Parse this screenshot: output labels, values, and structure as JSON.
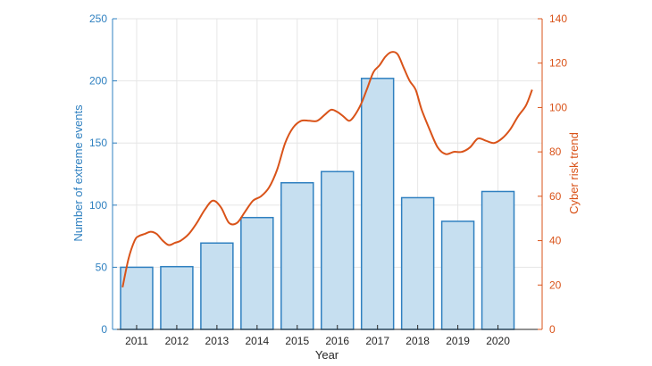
{
  "chart_data": {
    "type": "bar+line",
    "xlabel": "Year",
    "categories": [
      "2011",
      "2012",
      "2013",
      "2014",
      "2015",
      "2016",
      "2017",
      "2018",
      "2019",
      "2020"
    ],
    "bar_series": {
      "axis": "left",
      "values": [
        50,
        50.5,
        69.5,
        90,
        118,
        127,
        202,
        106,
        87,
        111
      ]
    },
    "line_series": {
      "axis": "right",
      "x": [
        2010.65,
        2010.8,
        2010.95,
        2011.05,
        2011.2,
        2011.35,
        2011.5,
        2011.65,
        2011.8,
        2011.95,
        2012.1,
        2012.3,
        2012.5,
        2012.7,
        2012.9,
        2013.1,
        2013.3,
        2013.5,
        2013.7,
        2013.9,
        2014.1,
        2014.3,
        2014.5,
        2014.7,
        2014.9,
        2015.1,
        2015.3,
        2015.5,
        2015.7,
        2015.85,
        2016.0,
        2016.15,
        2016.3,
        2016.45,
        2016.6,
        2016.75,
        2016.9,
        2017.05,
        2017.2,
        2017.35,
        2017.5,
        2017.65,
        2017.8,
        2017.95,
        2018.1,
        2018.3,
        2018.5,
        2018.7,
        2018.9,
        2019.1,
        2019.3,
        2019.5,
        2019.7,
        2019.9,
        2020.1,
        2020.3,
        2020.5,
        2020.7,
        2020.85
      ],
      "y": [
        19,
        32,
        40,
        42,
        43,
        44,
        43,
        40,
        38,
        39,
        40,
        43,
        48,
        54,
        58,
        55,
        48,
        48,
        53,
        58,
        60,
        64,
        72,
        84,
        91,
        94,
        94,
        94,
        97,
        99,
        98,
        96,
        94,
        97,
        102,
        109,
        116,
        119,
        123,
        125,
        124,
        118,
        112,
        108,
        99,
        90,
        82,
        79,
        80,
        80,
        82,
        86,
        85,
        84,
        86,
        90,
        96,
        101,
        108
      ]
    },
    "left_axis": {
      "label": "Number of extreme events",
      "ylim": [
        0,
        250
      ],
      "ticks": [
        "0",
        "50",
        "100",
        "150",
        "200",
        "250"
      ],
      "color": "#2f80c0"
    },
    "right_axis": {
      "label": "Cyber risk trend",
      "ylim": [
        0,
        140
      ],
      "ticks": [
        "0",
        "20",
        "40",
        "60",
        "80",
        "100",
        "120",
        "140"
      ],
      "color": "#d95319"
    },
    "xlim": [
      2010.4,
      2021.1
    ],
    "grid": true,
    "colors": {
      "bar_fill": "#c6dff0",
      "bar_edge": "#2f80c0",
      "line": "#d95319",
      "grid": "#e6e6e6",
      "axis": "#262626"
    }
  }
}
